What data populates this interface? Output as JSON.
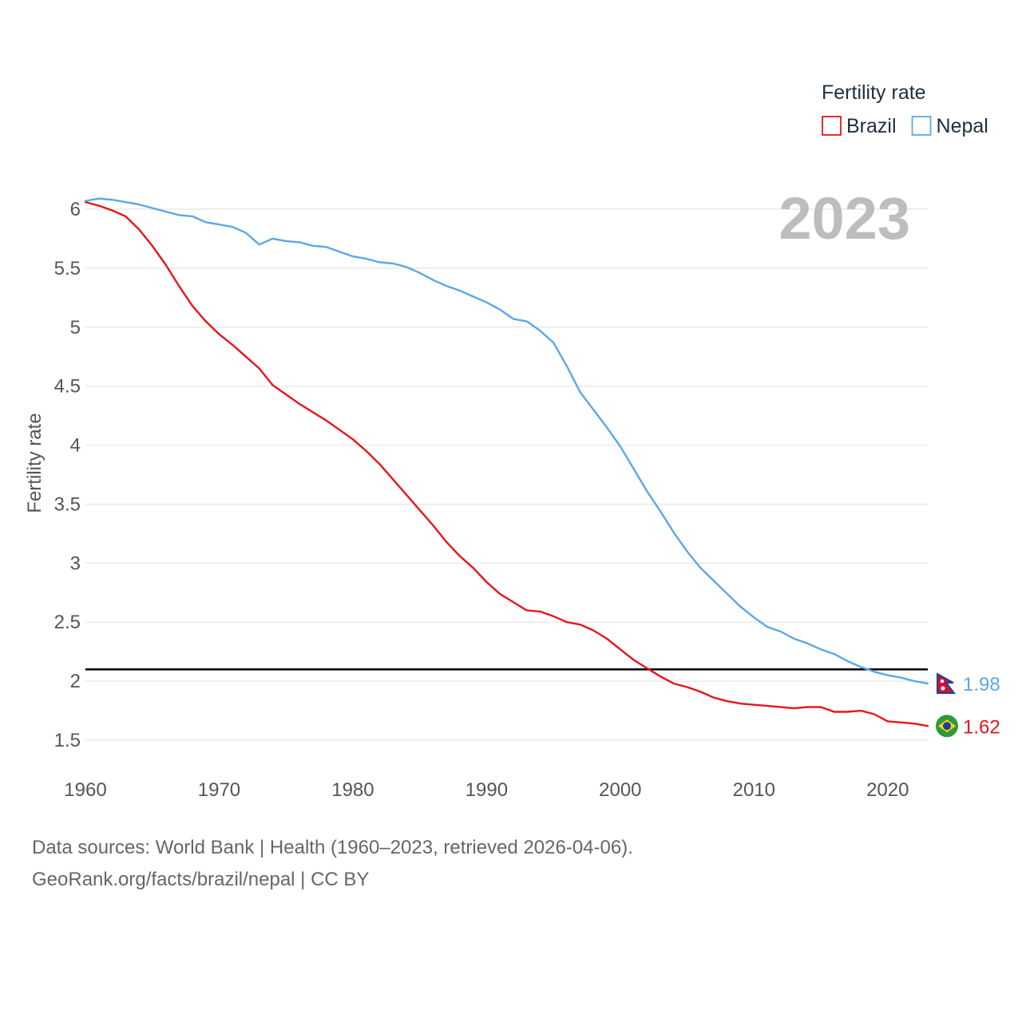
{
  "chart_data": {
    "type": "line",
    "title": "Fertility rate",
    "ylabel": "Fertility rate",
    "xlabel": "",
    "year_label": "2023",
    "xlim": [
      1960,
      2023
    ],
    "ylim": [
      1.3,
      6.2
    ],
    "xticks": [
      1960,
      1970,
      1980,
      1990,
      2000,
      2010,
      2020
    ],
    "yticks": [
      1.5,
      2,
      2.5,
      3,
      3.5,
      4,
      4.5,
      5,
      5.5,
      6
    ],
    "grid": true,
    "legend_position": "top-right",
    "reference_line": 2.1,
    "x": [
      1960,
      1961,
      1962,
      1963,
      1964,
      1965,
      1966,
      1967,
      1968,
      1969,
      1970,
      1971,
      1972,
      1973,
      1974,
      1975,
      1976,
      1977,
      1978,
      1979,
      1980,
      1981,
      1982,
      1983,
      1984,
      1985,
      1986,
      1987,
      1988,
      1989,
      1990,
      1991,
      1992,
      1993,
      1994,
      1995,
      1996,
      1997,
      1998,
      1999,
      2000,
      2001,
      2002,
      2003,
      2004,
      2005,
      2006,
      2007,
      2008,
      2009,
      2010,
      2011,
      2012,
      2013,
      2014,
      2015,
      2016,
      2017,
      2018,
      2019,
      2020,
      2021,
      2022,
      2023
    ],
    "series": [
      {
        "name": "Brazil",
        "color": "#e8141b",
        "end_value": "1.62",
        "values": [
          6.06,
          6.03,
          5.99,
          5.94,
          5.83,
          5.69,
          5.53,
          5.35,
          5.18,
          5.05,
          4.94,
          4.85,
          4.75,
          4.65,
          4.51,
          4.43,
          4.35,
          4.28,
          4.21,
          4.13,
          4.05,
          3.95,
          3.84,
          3.71,
          3.58,
          3.45,
          3.32,
          3.18,
          3.06,
          2.96,
          2.84,
          2.74,
          2.67,
          2.6,
          2.59,
          2.55,
          2.5,
          2.48,
          2.43,
          2.36,
          2.27,
          2.18,
          2.11,
          2.04,
          1.98,
          1.95,
          1.91,
          1.86,
          1.83,
          1.81,
          1.8,
          1.79,
          1.78,
          1.77,
          1.78,
          1.78,
          1.74,
          1.74,
          1.75,
          1.72,
          1.66,
          1.65,
          1.64,
          1.62
        ]
      },
      {
        "name": "Nepal",
        "color": "#5ba7e8",
        "end_value": "1.98",
        "values": [
          6.07,
          6.09,
          6.08,
          6.06,
          6.04,
          6.01,
          5.98,
          5.95,
          5.94,
          5.89,
          5.87,
          5.85,
          5.8,
          5.7,
          5.75,
          5.73,
          5.72,
          5.69,
          5.68,
          5.64,
          5.6,
          5.58,
          5.55,
          5.54,
          5.51,
          5.46,
          5.4,
          5.35,
          5.31,
          5.26,
          5.21,
          5.15,
          5.07,
          5.05,
          4.97,
          4.87,
          4.67,
          4.45,
          4.3,
          4.15,
          3.99,
          3.8,
          3.61,
          3.44,
          3.26,
          3.1,
          2.96,
          2.85,
          2.74,
          2.63,
          2.54,
          2.46,
          2.42,
          2.36,
          2.32,
          2.27,
          2.23,
          2.17,
          2.12,
          2.08,
          2.05,
          2.03,
          2.0,
          1.98
        ]
      }
    ]
  },
  "source": {
    "line1": "Data sources: World Bank | Health (1960–2023, retrieved 2026-04-06).",
    "line2": "GeoRank.org/facts/brazil/nepal | CC BY"
  }
}
